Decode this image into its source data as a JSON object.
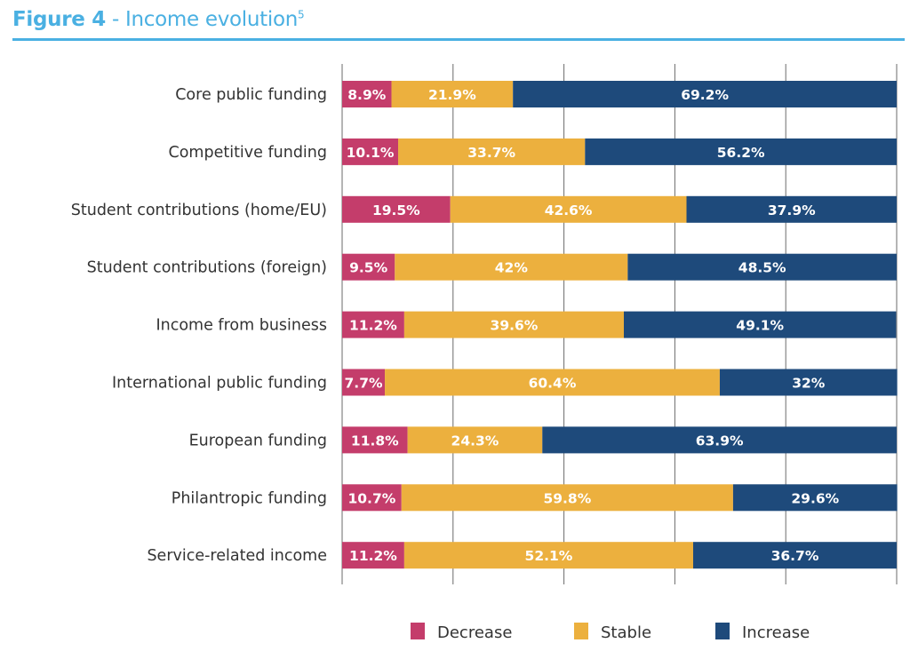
{
  "figure": {
    "title_bold": "Figure 4",
    "title_sep": " - ",
    "title_light": "Income evolution",
    "title_footnote": "5",
    "accent_color": "#4ab0e2"
  },
  "chart_data": {
    "type": "bar",
    "orientation": "horizontal",
    "stacked": true,
    "title": "Figure 4 - Income evolution",
    "xlabel": "",
    "ylabel": "",
    "xlim": [
      0,
      100
    ],
    "x_gridlines": [
      0,
      20,
      40,
      60,
      80,
      100
    ],
    "grid": true,
    "legend_position": "bottom",
    "categories": [
      "Core public funding",
      "Competitive funding",
      "Student contributions (home/EU)",
      "Student contributions (foreign)",
      "Income from business",
      "International public funding",
      "European funding",
      "Philantropic funding",
      "Service-related income"
    ],
    "series": [
      {
        "name": "Decrease",
        "color": "#c43d6b",
        "values": [
          8.9,
          10.1,
          19.5,
          9.5,
          11.2,
          7.7,
          11.8,
          10.7,
          11.2
        ],
        "labels": [
          "8.9%",
          "10.1%",
          "19.5%",
          "9.5%",
          "11.2%",
          "7.7%",
          "11.8%",
          "10.7%",
          "11.2%"
        ]
      },
      {
        "name": "Stable",
        "color": "#ecb03e",
        "values": [
          21.9,
          33.7,
          42.6,
          42,
          39.6,
          60.4,
          24.3,
          59.8,
          52.1
        ],
        "labels": [
          "21.9%",
          "33.7%",
          "42.6%",
          "42%",
          "39.6%",
          "60.4%",
          "24.3%",
          "59.8%",
          "52.1%"
        ]
      },
      {
        "name": "Increase",
        "color": "#1e4a7b",
        "values": [
          69.2,
          56.2,
          37.9,
          48.5,
          49.1,
          32,
          63.9,
          29.6,
          36.7
        ],
        "labels": [
          "69.2%",
          "56.2%",
          "37.9%",
          "48.5%",
          "49.1%",
          "32%",
          "63.9%",
          "29.6%",
          "36.7%"
        ]
      }
    ]
  }
}
